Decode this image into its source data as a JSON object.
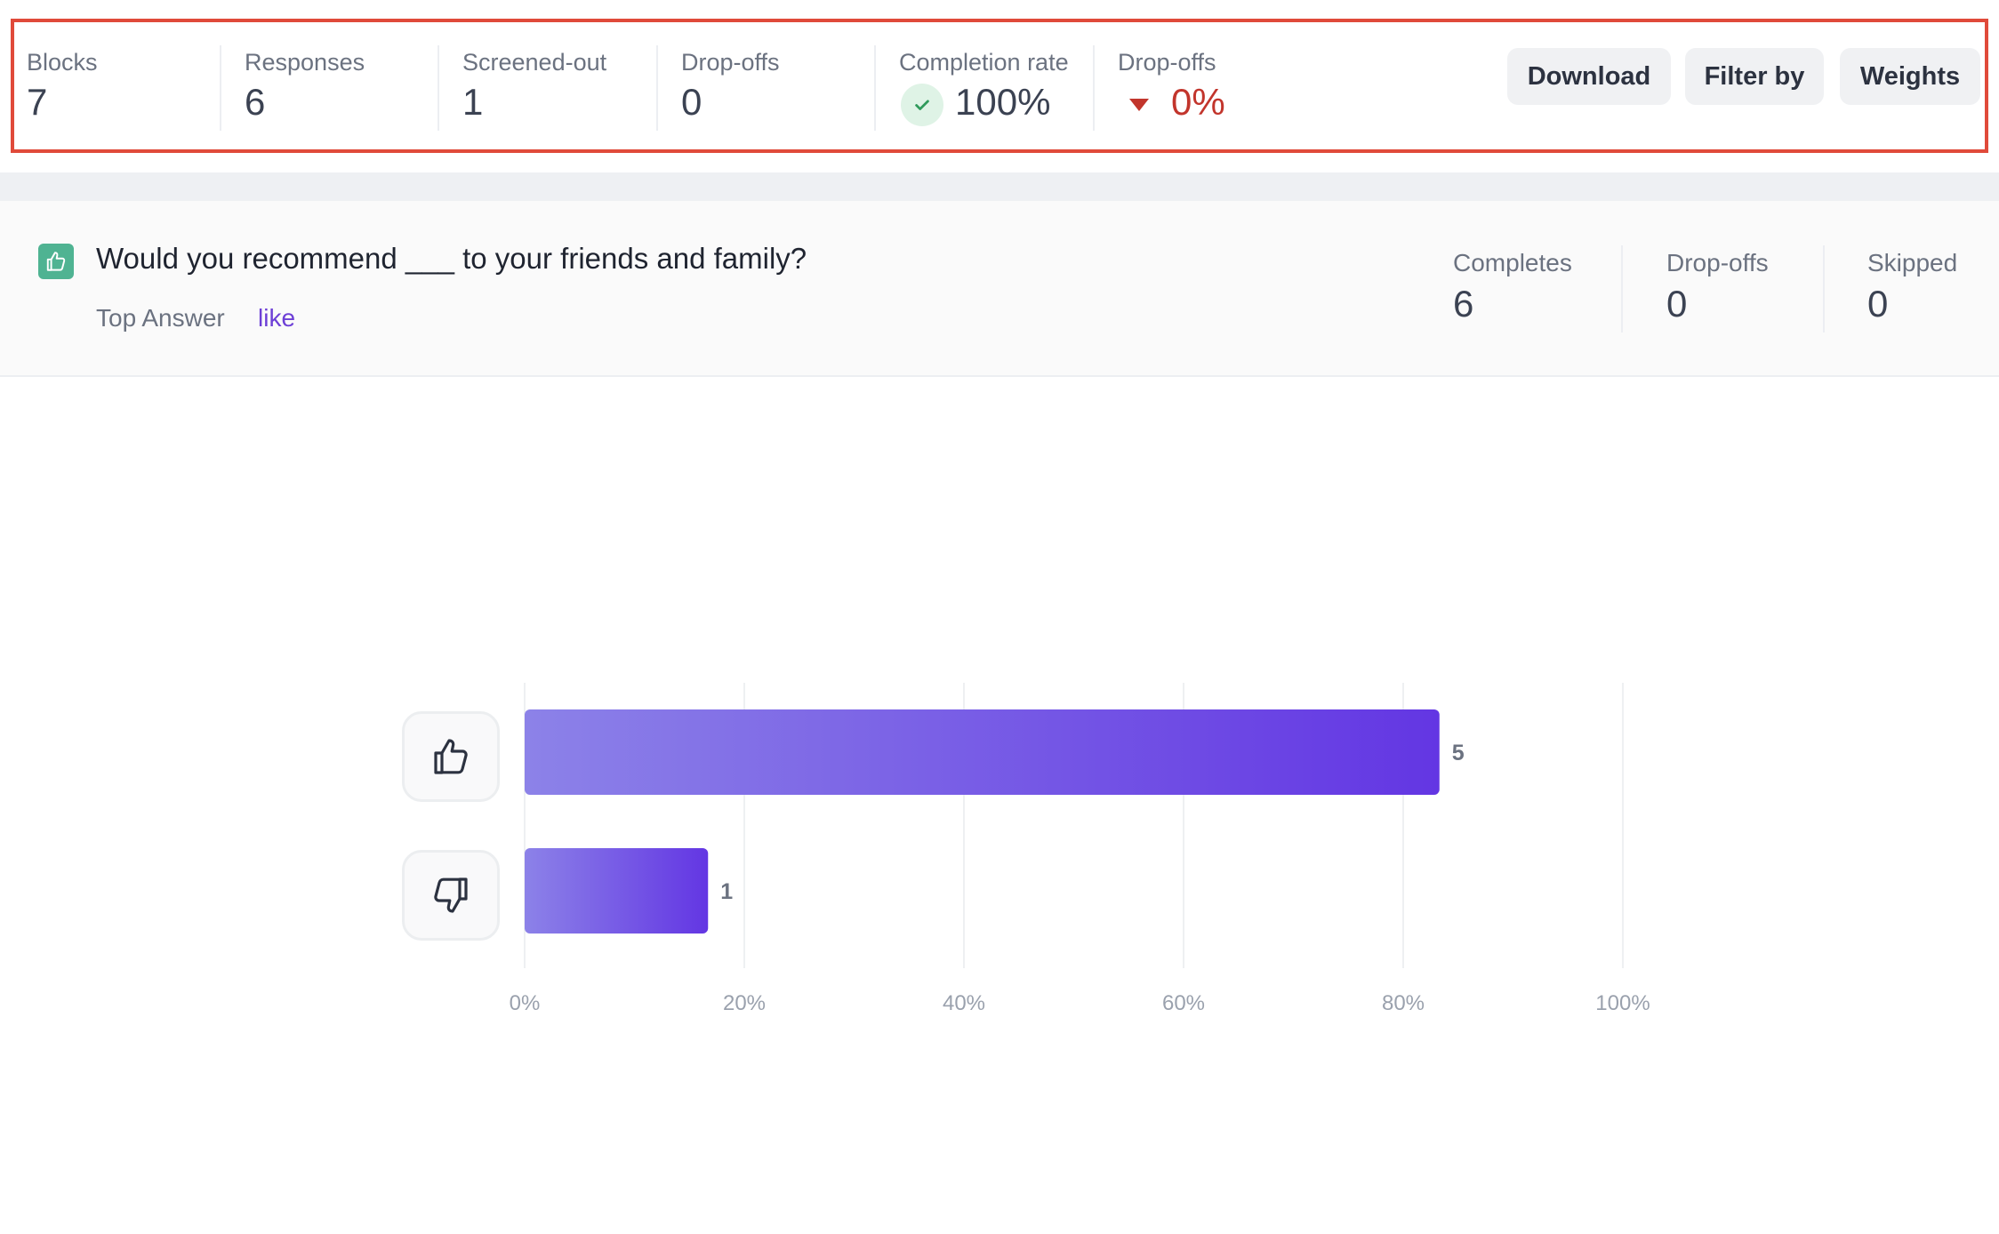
{
  "stats": {
    "blocks": {
      "label": "Blocks",
      "value": "7"
    },
    "responses": {
      "label": "Responses",
      "value": "6"
    },
    "screened_out": {
      "label": "Screened-out",
      "value": "1"
    },
    "drop_offs": {
      "label": "Drop-offs",
      "value": "0"
    },
    "completion_rate": {
      "label": "Completion rate",
      "value": "100%"
    },
    "drop_off_rate": {
      "label": "Drop-offs",
      "value": "0%"
    }
  },
  "toolbar": {
    "download_label": "Download",
    "filter_label": "Filter by",
    "weights_label": "Weights"
  },
  "question": {
    "title": "Would you recommend ___ to your friends and family?",
    "top_answer_label": "Top Answer",
    "top_answer_value": "like",
    "completes": {
      "label": "Completes",
      "value": "6"
    },
    "drop_offs": {
      "label": "Drop-offs",
      "value": "0"
    },
    "skipped": {
      "label": "Skipped",
      "value": "0"
    }
  },
  "colors": {
    "highlight_border": "#e04a3a",
    "accent": "#6d3fd6",
    "bar_start": "#8c82e8",
    "bar_end": "#6336e3",
    "success_badge": "#dff3e6",
    "danger": "#c2352c"
  },
  "icons": {
    "question_type": "thumbs-up-icon",
    "answer_like": "thumbs-up-icon",
    "answer_dislike": "thumbs-down-icon"
  },
  "chart_data": {
    "type": "bar",
    "orientation": "horizontal",
    "categories": [
      "like",
      "dislike"
    ],
    "values": [
      5,
      1
    ],
    "percentages": [
      83.3,
      16.7
    ],
    "x_ticks": [
      "0%",
      "20%",
      "40%",
      "60%",
      "80%",
      "100%"
    ],
    "xlim": [
      0,
      100
    ],
    "grid": true
  }
}
